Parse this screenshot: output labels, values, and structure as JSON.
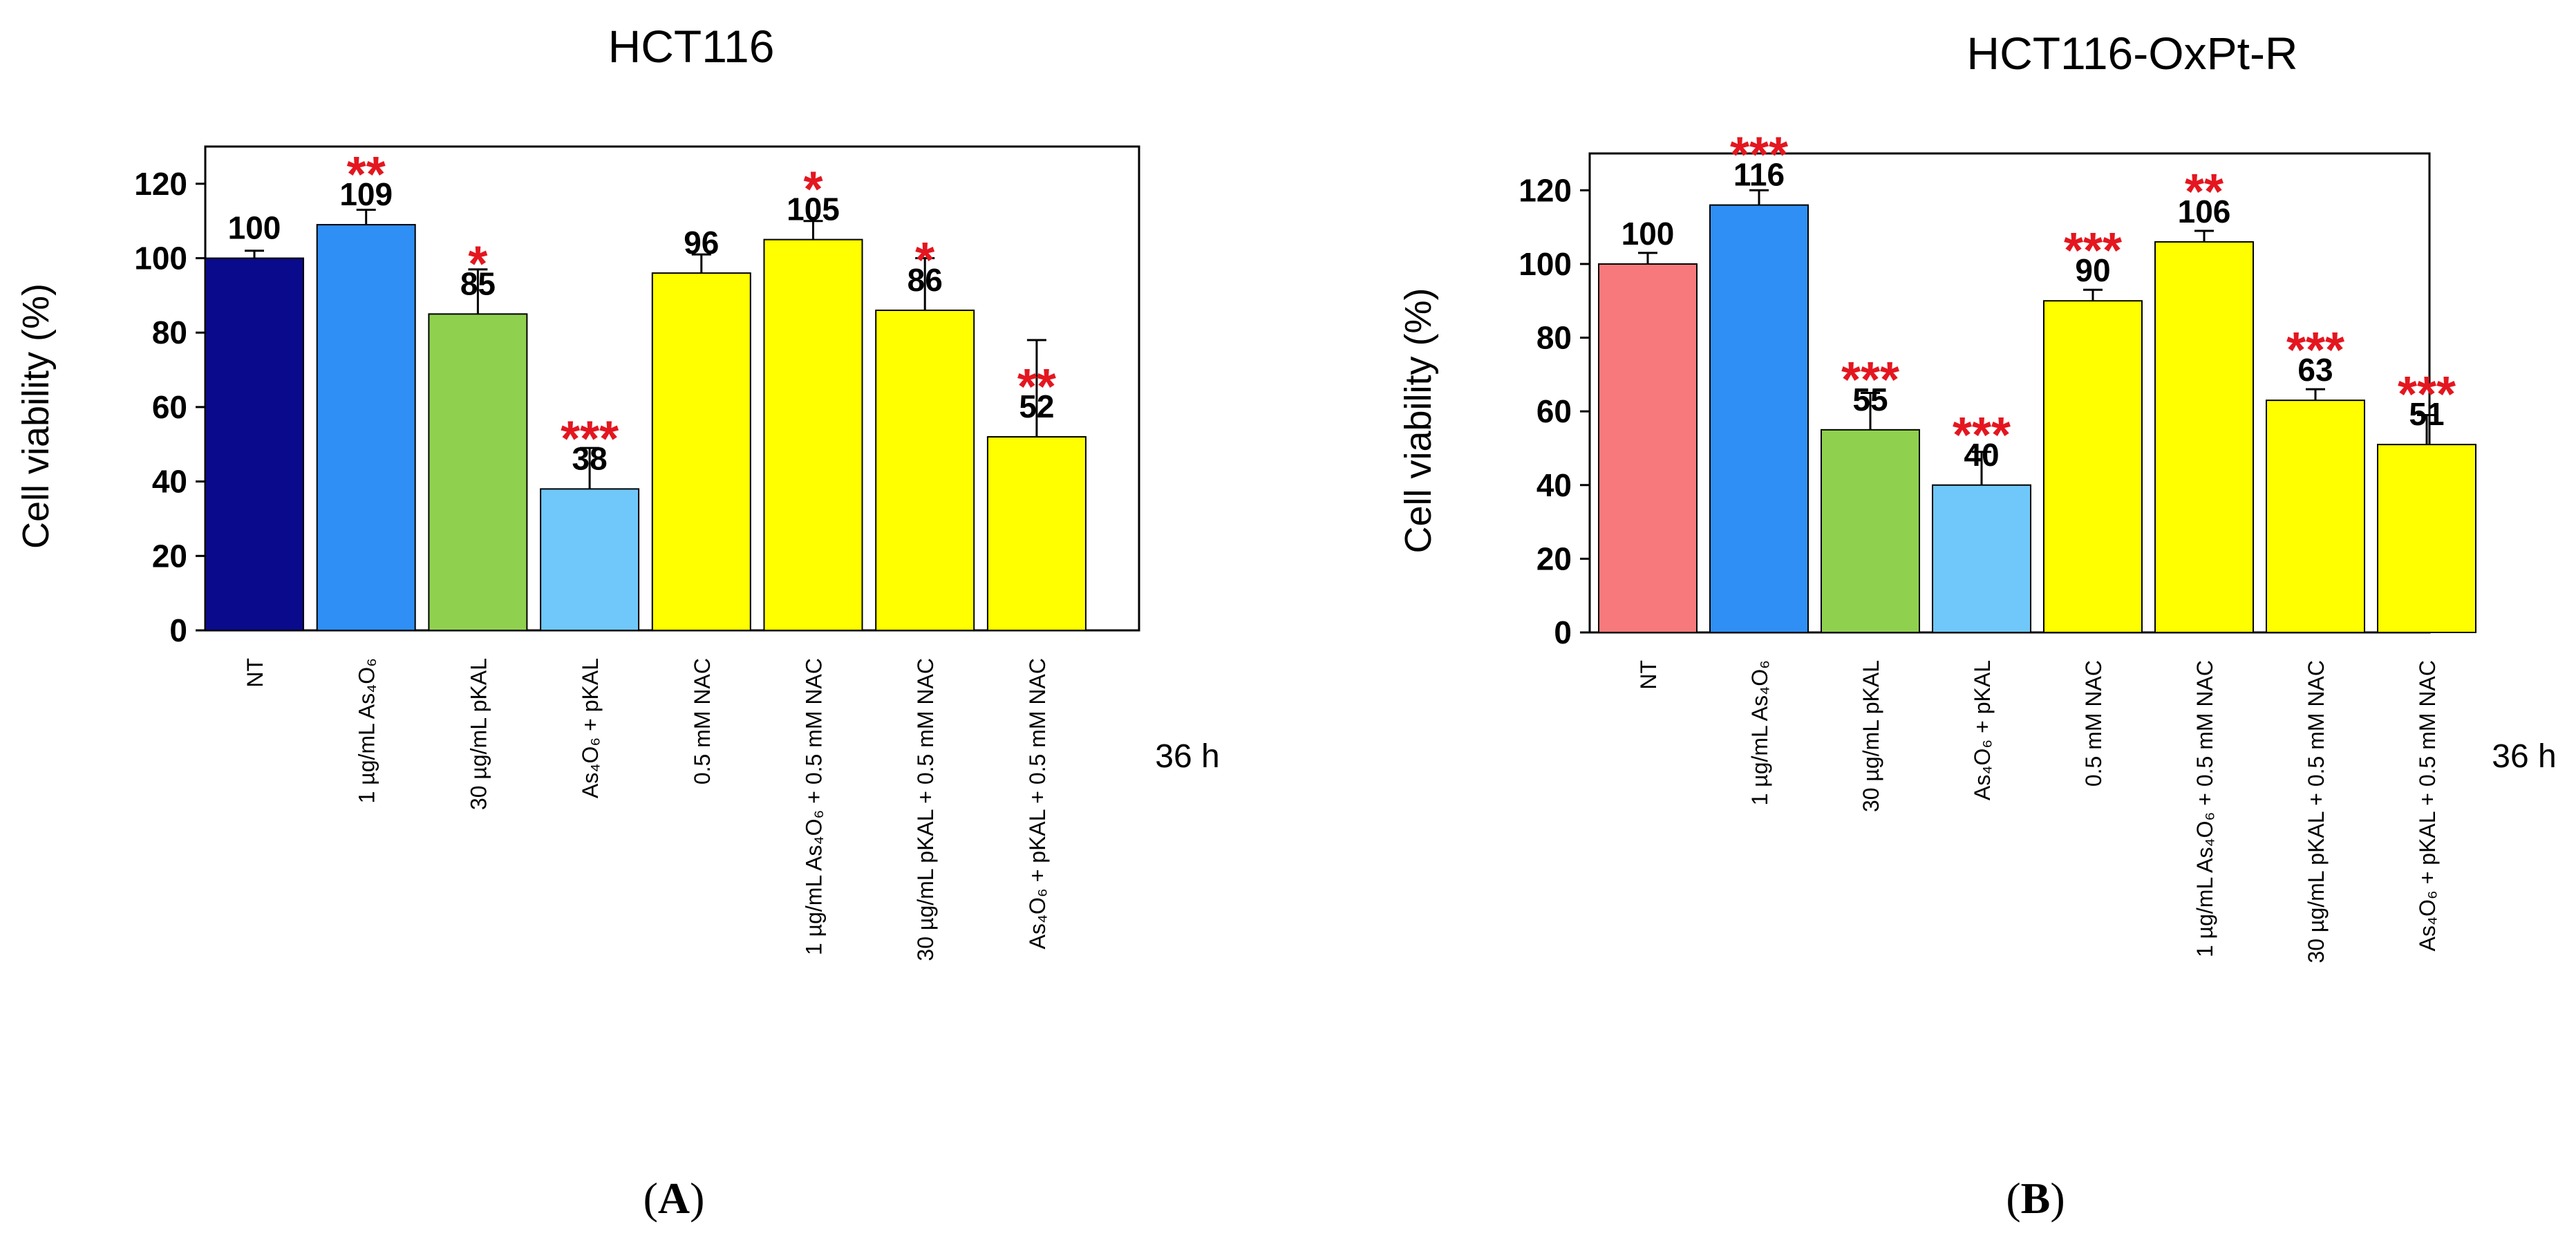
{
  "chart_data": [
    {
      "type": "bar",
      "title": "HCT116",
      "ylabel": "Cell viability (%)",
      "xlabel": "36 h",
      "panel_label": [
        "(",
        "A",
        ")"
      ],
      "ylim": [
        0,
        130
      ],
      "yticks": [
        0,
        20,
        40,
        60,
        80,
        100,
        120
      ],
      "categories": [
        "NT",
        "1 µg/mL As₄O₆",
        "30 µg/mL pKAL",
        "As₄O₆ + pKAL",
        "0.5 mM NAC",
        "1 µg/mL As₄O₆ + 0.5 mM NAC",
        "30 µg/mL pKAL + 0.5 mM NAC",
        "As₄O₆ + pKAL + 0.5 mM NAC"
      ],
      "values": [
        100,
        109,
        85,
        38,
        96,
        105,
        86,
        52
      ],
      "errors": [
        2,
        4,
        12,
        11,
        5,
        5,
        14,
        26
      ],
      "significance": [
        "",
        "**",
        "*",
        "***",
        "",
        "*",
        "*",
        "**"
      ],
      "colors": [
        "#0a0a8c",
        "#2f8ff5",
        "#8fd14f",
        "#6fc8f9",
        "#ffff00",
        "#ffff00",
        "#ffff00",
        "#ffff00"
      ]
    },
    {
      "type": "bar",
      "title": "HCT116-OxPt-R",
      "ylabel": "Cell viability (%)",
      "xlabel": "36 h",
      "panel_label": [
        "(",
        "B",
        ")"
      ],
      "ylim": [
        0,
        130
      ],
      "yticks": [
        0,
        20,
        40,
        60,
        80,
        100,
        120
      ],
      "categories": [
        "NT",
        "1 µg/mL As₄O₆",
        "30 µg/mL pKAL",
        "As₄O₆ + pKAL",
        "0.5 mM NAC",
        "1 µg/mL As₄O₆ + 0.5 mM NAC",
        "30 µg/mL pKAL + 0.5 mM NAC",
        "As₄O₆ + pKAL + 0.5 mM NAC"
      ],
      "values": [
        100,
        116,
        55,
        40,
        90,
        106,
        63,
        51
      ],
      "errors": [
        3,
        4,
        10,
        9,
        3,
        3,
        3,
        8
      ],
      "significance": [
        "",
        "***",
        "***",
        "***",
        "***",
        "**",
        "***",
        "***"
      ],
      "colors": [
        "#f8797b",
        "#2f8ff5",
        "#8fd14f",
        "#6fc8f9",
        "#ffff00",
        "#ffff00",
        "#ffff00",
        "#ffff00"
      ]
    }
  ]
}
